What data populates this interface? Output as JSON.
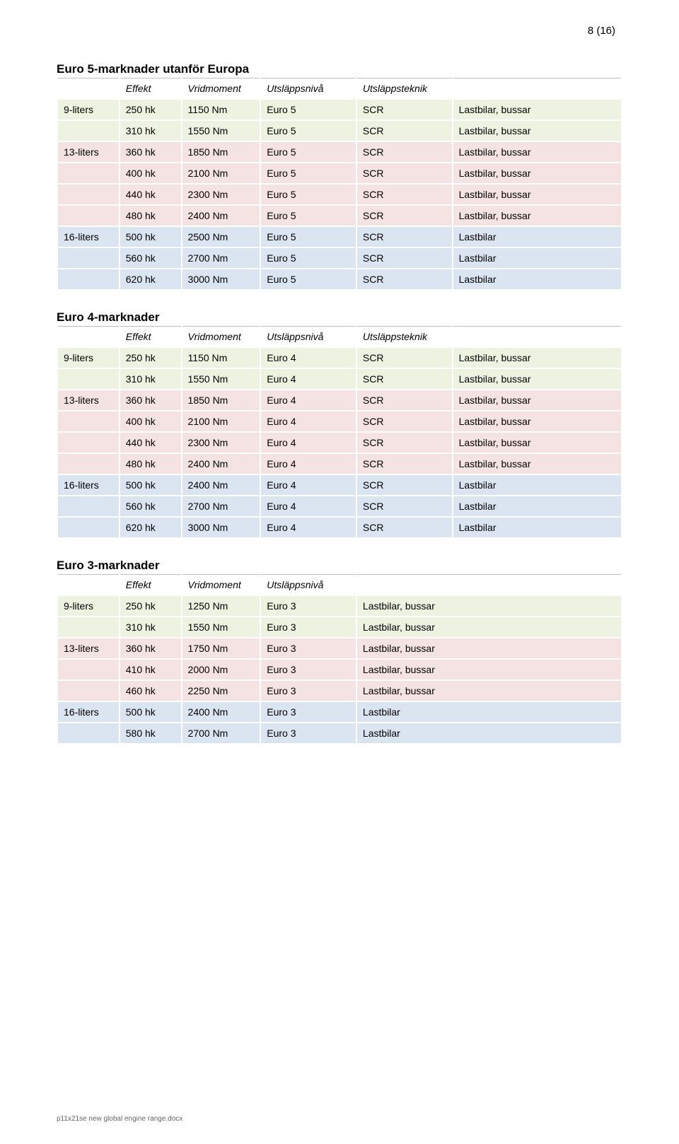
{
  "pageNumber": "8  (16)",
  "footer": "p11x21se new global engine range.docx",
  "colors": {
    "band1": "#eef2e0",
    "band2": "#f5e3e3",
    "band3": "#dbe5f1",
    "header_border": "#bfbfbf"
  },
  "col_widths_5": [
    "11%",
    "11%",
    "14%",
    "17%",
    "17%",
    "30%"
  ],
  "col_widths_4": [
    "11%",
    "11%",
    "14%",
    "17%",
    "47%"
  ],
  "sections": [
    {
      "title": "Euro 5-marknader utanför Europa",
      "columns": [
        "",
        "Effekt",
        "Vridmoment",
        "Utsläppsnivå",
        "Utsläppsteknik",
        ""
      ],
      "groups": [
        {
          "color": "band1",
          "rows": [
            [
              "9-liters",
              "250 hk",
              "1150 Nm",
              "Euro 5",
              "SCR",
              "Lastbilar, bussar"
            ],
            [
              "",
              "310 hk",
              "1550 Nm",
              "Euro 5",
              "SCR",
              "Lastbilar, bussar"
            ]
          ]
        },
        {
          "color": "band2",
          "rows": [
            [
              "13-liters",
              "360 hk",
              "1850 Nm",
              "Euro 5",
              "SCR",
              "Lastbilar, bussar"
            ],
            [
              "",
              "400 hk",
              "2100 Nm",
              "Euro 5",
              "SCR",
              "Lastbilar, bussar"
            ],
            [
              "",
              "440 hk",
              "2300 Nm",
              "Euro 5",
              "SCR",
              "Lastbilar, bussar"
            ],
            [
              "",
              "480 hk",
              "2400 Nm",
              "Euro 5",
              "SCR",
              "Lastbilar, bussar"
            ]
          ]
        },
        {
          "color": "band3",
          "rows": [
            [
              "16-liters",
              "500 hk",
              "2500 Nm",
              "Euro 5",
              "SCR",
              "Lastbilar"
            ],
            [
              "",
              "560 hk",
              "2700 Nm",
              "Euro 5",
              "SCR",
              "Lastbilar"
            ],
            [
              "",
              "620 hk",
              "3000 Nm",
              "Euro 5",
              "SCR",
              "Lastbilar"
            ]
          ]
        }
      ]
    },
    {
      "title": "Euro 4-marknader",
      "columns": [
        "",
        "Effekt",
        "Vridmoment",
        "Utsläppsnivå",
        "Utsläppsteknik",
        ""
      ],
      "groups": [
        {
          "color": "band1",
          "rows": [
            [
              "9-liters",
              "250 hk",
              "1150 Nm",
              "Euro 4",
              "SCR",
              "Lastbilar, bussar"
            ],
            [
              "",
              "310 hk",
              "1550 Nm",
              "Euro 4",
              "SCR",
              "Lastbilar, bussar"
            ]
          ]
        },
        {
          "color": "band2",
          "rows": [
            [
              "13-liters",
              "360 hk",
              "1850 Nm",
              "Euro 4",
              "SCR",
              "Lastbilar, bussar"
            ],
            [
              "",
              "400 hk",
              "2100 Nm",
              "Euro 4",
              "SCR",
              "Lastbilar, bussar"
            ],
            [
              "",
              "440 hk",
              "2300 Nm",
              "Euro 4",
              "SCR",
              "Lastbilar, bussar"
            ],
            [
              "",
              "480 hk",
              "2400 Nm",
              "Euro 4",
              "SCR",
              "Lastbilar, bussar"
            ]
          ]
        },
        {
          "color": "band3",
          "rows": [
            [
              "16-liters",
              "500 hk",
              "2400 Nm",
              "Euro 4",
              "SCR",
              "Lastbilar"
            ],
            [
              "",
              "560 hk",
              "2700 Nm",
              "Euro 4",
              "SCR",
              "Lastbilar"
            ],
            [
              "",
              "620 hk",
              "3000 Nm",
              "Euro 4",
              "SCR",
              "Lastbilar"
            ]
          ]
        }
      ]
    },
    {
      "title": "Euro 3-marknader",
      "columns": [
        "",
        "Effekt",
        "Vridmoment",
        "Utsläppsnivå",
        ""
      ],
      "groups": [
        {
          "color": "band1",
          "rows": [
            [
              "9-liters",
              "250 hk",
              "1250 Nm",
              "Euro 3",
              "Lastbilar, bussar"
            ],
            [
              "",
              "310 hk",
              "1550 Nm",
              "Euro 3",
              "Lastbilar, bussar"
            ]
          ]
        },
        {
          "color": "band2",
          "rows": [
            [
              "13-liters",
              "360 hk",
              "1750 Nm",
              "Euro 3",
              "Lastbilar, bussar"
            ],
            [
              "",
              "410 hk",
              "2000 Nm",
              "Euro 3",
              "Lastbilar, bussar"
            ],
            [
              "",
              "460 hk",
              "2250 Nm",
              "Euro 3",
              "Lastbilar, bussar"
            ]
          ]
        },
        {
          "color": "band3",
          "rows": [
            [
              "16-liters",
              "500 hk",
              "2400 Nm",
              "Euro 3",
              "Lastbilar"
            ],
            [
              "",
              "580 hk",
              "2700 Nm",
              "Euro 3",
              "Lastbilar"
            ]
          ]
        }
      ]
    }
  ]
}
